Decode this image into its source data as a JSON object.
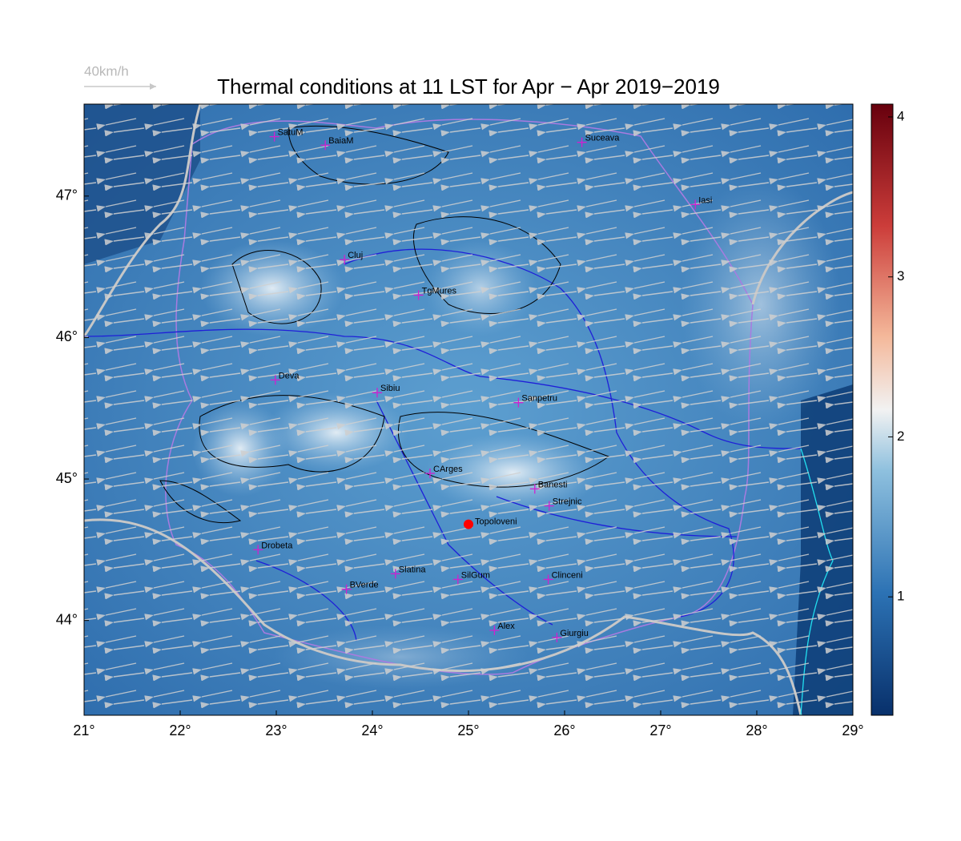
{
  "map": {
    "title": "Thermal conditions at 11 LST for Apr − Apr  2019−2019",
    "wind_legend": "40km/h",
    "xlim": [
      21,
      29
    ],
    "ylim": [
      43.33,
      47.65
    ],
    "xticks": [
      {
        "value": 21,
        "label": "21°"
      },
      {
        "value": 22,
        "label": "22°"
      },
      {
        "value": 23,
        "label": "23°"
      },
      {
        "value": 24,
        "label": "24°"
      },
      {
        "value": 25,
        "label": "25°"
      },
      {
        "value": 26,
        "label": "26°"
      },
      {
        "value": 27,
        "label": "27°"
      },
      {
        "value": 28,
        "label": "28°"
      },
      {
        "value": 29,
        "label": "29°"
      }
    ],
    "yticks": [
      {
        "value": 44,
        "label": "44°"
      },
      {
        "value": 45,
        "label": "45°"
      },
      {
        "value": 46,
        "label": "46°"
      },
      {
        "value": 47,
        "label": "47°"
      }
    ],
    "colorbar": {
      "lim": [
        0.26,
        4.08
      ],
      "ticks": [
        1,
        2,
        3,
        4
      ]
    },
    "cities": [
      {
        "name": "SatuM",
        "lon": 22.98,
        "lat": 47.42
      },
      {
        "name": "BaiaM",
        "lon": 23.51,
        "lat": 47.36
      },
      {
        "name": "Suceava",
        "lon": 26.18,
        "lat": 47.38
      },
      {
        "name": "Iasi",
        "lon": 27.36,
        "lat": 46.94
      },
      {
        "name": "Cluj",
        "lon": 23.71,
        "lat": 46.55
      },
      {
        "name": "TgMures",
        "lon": 24.48,
        "lat": 46.3
      },
      {
        "name": "Deva",
        "lon": 22.99,
        "lat": 45.7
      },
      {
        "name": "Sibiu",
        "lon": 24.05,
        "lat": 45.61
      },
      {
        "name": "Sanpetru",
        "lon": 25.52,
        "lat": 45.54
      },
      {
        "name": "CArges",
        "lon": 24.6,
        "lat": 45.04
      },
      {
        "name": "Banesti",
        "lon": 25.69,
        "lat": 44.93
      },
      {
        "name": "Strejnic",
        "lon": 25.84,
        "lat": 44.81
      },
      {
        "name": "Drobeta",
        "lon": 22.81,
        "lat": 44.5
      },
      {
        "name": "Slatina",
        "lon": 24.24,
        "lat": 44.33
      },
      {
        "name": "SilGum",
        "lon": 24.89,
        "lat": 44.29
      },
      {
        "name": "Clinceni",
        "lon": 25.83,
        "lat": 44.29
      },
      {
        "name": "BVerde",
        "lon": 23.73,
        "lat": 44.22
      },
      {
        "name": "Alex",
        "lon": 25.27,
        "lat": 43.93
      },
      {
        "name": "Giurgiu",
        "lon": 25.92,
        "lat": 43.88
      }
    ],
    "site": {
      "name": "Topoloveni",
      "lon": 25.0,
      "lat": 44.68,
      "color": "#ff0000"
    }
  }
}
